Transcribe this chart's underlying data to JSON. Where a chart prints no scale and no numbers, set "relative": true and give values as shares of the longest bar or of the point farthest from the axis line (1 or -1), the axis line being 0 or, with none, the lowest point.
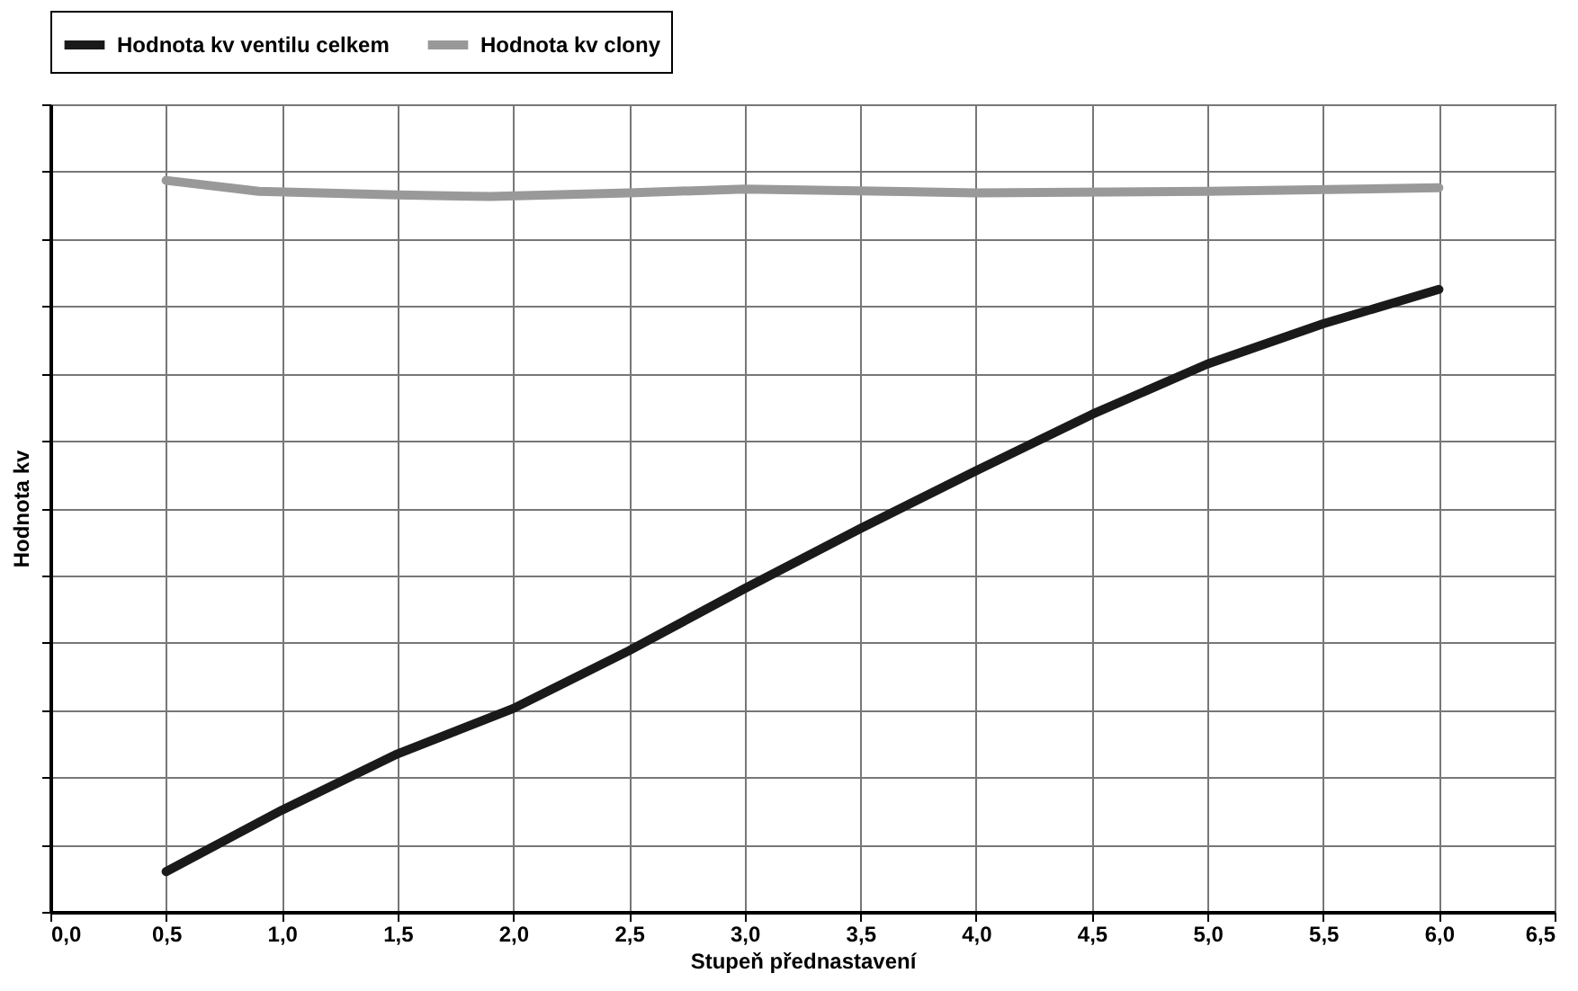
{
  "chart_data": {
    "type": "line",
    "relative": true,
    "xlabel": "Stupeň přednastavení",
    "ylabel": "Hodnota kv",
    "xlim": [
      0,
      6.5
    ],
    "xticks": [
      {
        "value": 0,
        "label": "0,0"
      },
      {
        "value": 0.5,
        "label": "0,5"
      },
      {
        "value": 1,
        "label": "1,0"
      },
      {
        "value": 1.5,
        "label": "1,5"
      },
      {
        "value": 2,
        "label": "2,0"
      },
      {
        "value": 2.5,
        "label": "2,5"
      },
      {
        "value": 3,
        "label": "3,0"
      },
      {
        "value": 3.5,
        "label": "3,5"
      },
      {
        "value": 4,
        "label": "4,0"
      },
      {
        "value": 4.5,
        "label": "4,5"
      },
      {
        "value": 5,
        "label": "5,0"
      },
      {
        "value": 5.5,
        "label": "5,5"
      },
      {
        "value": 6,
        "label": "6,0"
      },
      {
        "value": 6.5,
        "label": "6,5"
      }
    ],
    "grid": true,
    "legend": "top",
    "line_style": "solid",
    "marker": "none",
    "series": [
      {
        "name": "Hodnota kv ventilu celkem",
        "color": "#1a1a1a",
        "x": [
          0.5,
          1,
          1.5,
          2,
          2.5,
          3,
          3.5,
          4,
          4.5,
          5,
          5.5,
          6
        ],
        "values": [
          0.055,
          0.139,
          0.216,
          0.278,
          0.357,
          0.442,
          0.524,
          0.603,
          0.68,
          0.749,
          0.804,
          0.851
        ]
      },
      {
        "name": "Hodnota kv clony",
        "color": "#999999",
        "x": [
          0.5,
          0.9,
          1.5,
          1.9,
          2.5,
          3,
          4,
          5,
          6
        ],
        "values": [
          1,
          0.985,
          0.98,
          0.978,
          0.983,
          0.988,
          0.983,
          0.985,
          0.99
        ]
      }
    ]
  }
}
